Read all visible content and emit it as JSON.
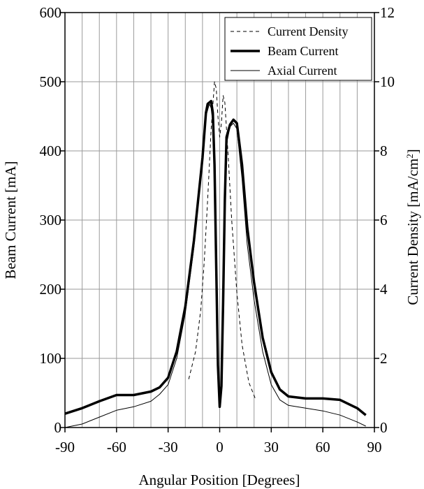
{
  "chart_data": {
    "type": "line",
    "title": "",
    "xlabel": "Angular Position [Degrees]",
    "ylabel_left": "Beam Current [mA]",
    "ylabel_right_base": "Current Density [mA/cm",
    "ylabel_right_sup": "2",
    "ylabel_right_end": "]",
    "xlim": [
      -90,
      90
    ],
    "ylim_left": [
      0,
      600
    ],
    "ylim_right": [
      0,
      12
    ],
    "x_ticks": [
      "-90",
      "-60",
      "-30",
      "0",
      "30",
      "60",
      "90"
    ],
    "y_ticks_left": [
      "0",
      "100",
      "200",
      "300",
      "400",
      "500",
      "600"
    ],
    "y_ticks_right": [
      "0",
      "2",
      "4",
      "6",
      "8",
      "10",
      "12"
    ],
    "grid": true,
    "legend_position": "top-right",
    "series": [
      {
        "name": "Current Density",
        "style": "dashed",
        "axis": "right",
        "points": [
          [
            -18,
            1.4
          ],
          [
            -14,
            2.2
          ],
          [
            -11,
            3.4
          ],
          [
            -9,
            4.8
          ],
          [
            -7,
            6.6
          ],
          [
            -5,
            8.6
          ],
          [
            -3,
            10.0
          ],
          [
            -2,
            9.8
          ],
          [
            -1,
            9.0
          ],
          [
            0,
            8.4
          ],
          [
            1,
            8.8
          ],
          [
            2,
            9.6
          ],
          [
            3,
            9.4
          ],
          [
            5,
            7.8
          ],
          [
            7,
            6.0
          ],
          [
            10,
            3.9
          ],
          [
            13,
            2.4
          ],
          [
            17,
            1.3
          ],
          [
            21,
            0.8
          ]
        ]
      },
      {
        "name": "Beam Current",
        "style": "thick",
        "axis": "left",
        "points": [
          [
            -90,
            20
          ],
          [
            -80,
            28
          ],
          [
            -70,
            38
          ],
          [
            -60,
            47
          ],
          [
            -50,
            47
          ],
          [
            -40,
            52
          ],
          [
            -35,
            58
          ],
          [
            -30,
            72
          ],
          [
            -25,
            110
          ],
          [
            -20,
            175
          ],
          [
            -15,
            270
          ],
          [
            -10,
            390
          ],
          [
            -8,
            455
          ],
          [
            -7,
            468
          ],
          [
            -5,
            472
          ],
          [
            -4,
            455
          ],
          [
            -3,
            380
          ],
          [
            -2,
            230
          ],
          [
            -1,
            90
          ],
          [
            0,
            30
          ],
          [
            1,
            60
          ],
          [
            2,
            180
          ],
          [
            3,
            330
          ],
          [
            4,
            420
          ],
          [
            6,
            438
          ],
          [
            8,
            445
          ],
          [
            10,
            440
          ],
          [
            13,
            380
          ],
          [
            16,
            290
          ],
          [
            20,
            210
          ],
          [
            25,
            130
          ],
          [
            30,
            80
          ],
          [
            35,
            55
          ],
          [
            40,
            45
          ],
          [
            50,
            42
          ],
          [
            60,
            42
          ],
          [
            70,
            40
          ],
          [
            80,
            28
          ],
          [
            85,
            18
          ]
        ]
      },
      {
        "name": "Axial Current",
        "style": "thin",
        "axis": "left",
        "points": [
          [
            -90,
            0
          ],
          [
            -80,
            5
          ],
          [
            -70,
            15
          ],
          [
            -60,
            25
          ],
          [
            -50,
            30
          ],
          [
            -40,
            38
          ],
          [
            -35,
            48
          ],
          [
            -30,
            62
          ],
          [
            -25,
            100
          ],
          [
            -20,
            165
          ],
          [
            -15,
            260
          ],
          [
            -10,
            385
          ],
          [
            -8,
            450
          ],
          [
            -6,
            468
          ],
          [
            -5,
            462
          ],
          [
            -4,
            440
          ],
          [
            -3,
            360
          ],
          [
            -2,
            200
          ],
          [
            -1,
            70
          ],
          [
            0,
            30
          ],
          [
            1,
            50
          ],
          [
            2,
            170
          ],
          [
            3,
            320
          ],
          [
            4,
            410
          ],
          [
            6,
            435
          ],
          [
            8,
            440
          ],
          [
            10,
            432
          ],
          [
            13,
            360
          ],
          [
            16,
            265
          ],
          [
            20,
            185
          ],
          [
            25,
            110
          ],
          [
            30,
            62
          ],
          [
            35,
            40
          ],
          [
            40,
            32
          ],
          [
            50,
            28
          ],
          [
            60,
            24
          ],
          [
            70,
            18
          ],
          [
            80,
            8
          ],
          [
            85,
            2
          ]
        ]
      }
    ]
  }
}
